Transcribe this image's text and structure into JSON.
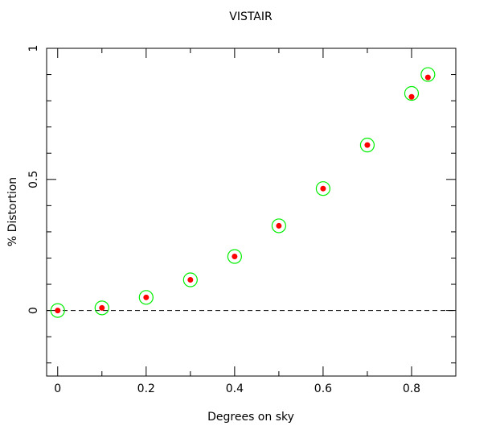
{
  "chart_data": {
    "type": "scatter",
    "title": "VISTAIR",
    "x_label": "Degrees on sky",
    "y_label": "% Distortion",
    "xlim": [
      -0.025,
      0.9
    ],
    "ylim": [
      -0.25,
      1
    ],
    "xticks": [
      0,
      0.2,
      0.4,
      0.6,
      0.8
    ],
    "yticks": [
      0,
      0.5,
      1
    ],
    "xminorticks": [
      0.1,
      0.3,
      0.5,
      0.7
    ],
    "yminorticks": [
      -0.2,
      -0.1,
      0.1,
      0.2,
      0.3,
      0.4,
      0.6,
      0.7,
      0.8,
      0.9
    ],
    "hline": 0,
    "series": [
      {
        "color": "#00ee00",
        "marker": "open-circle",
        "x": [
          0,
          0.1,
          0.2,
          0.3,
          0.4,
          0.5,
          0.6,
          0.7,
          0.8,
          0.837
        ],
        "values": [
          0,
          0.01,
          0.05,
          0.117,
          0.206,
          0.323,
          0.465,
          0.631,
          0.828,
          0.9
        ]
      },
      {
        "color": "#ff0000",
        "marker": "dot",
        "x": [
          0,
          0.1,
          0.2,
          0.3,
          0.4,
          0.5,
          0.6,
          0.7,
          0.8,
          0.837
        ],
        "values": [
          0,
          0.01,
          0.05,
          0.117,
          0.206,
          0.323,
          0.465,
          0.631,
          0.815,
          0.889
        ]
      }
    ]
  }
}
